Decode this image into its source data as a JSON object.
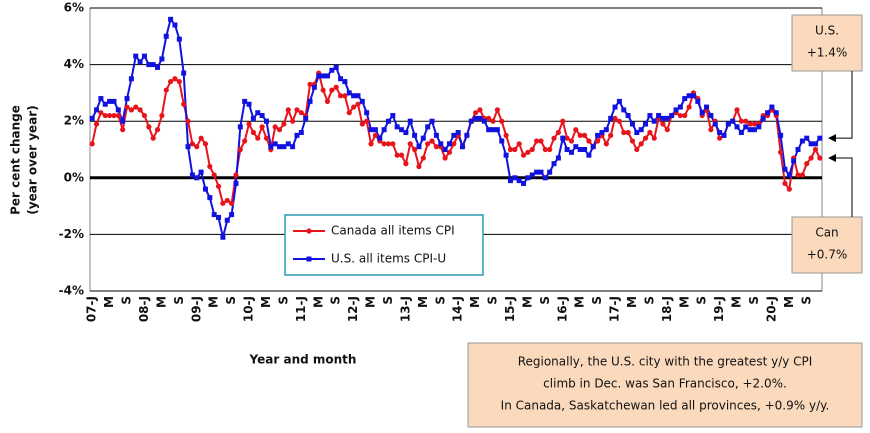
{
  "chart_data": {
    "type": "line",
    "ylabel": [
      "Per cent change",
      "(year over year)"
    ],
    "xlabel": "Year and month",
    "categories": [
      "07-J",
      null,
      null,
      null,
      "M",
      null,
      null,
      null,
      "S",
      null,
      null,
      null,
      "08-J",
      null,
      null,
      null,
      "M",
      null,
      null,
      null,
      "S",
      null,
      null,
      null,
      "09-J",
      null,
      null,
      null,
      "M",
      null,
      null,
      null,
      "S",
      null,
      null,
      null,
      "10-J",
      null,
      null,
      null,
      "M",
      null,
      null,
      null,
      "S",
      null,
      null,
      null,
      "11-J",
      null,
      null,
      null,
      "M",
      null,
      null,
      null,
      "S",
      null,
      null,
      null,
      "12-J",
      null,
      null,
      null,
      "M",
      null,
      null,
      null,
      "S",
      null,
      null,
      null,
      "13-J",
      null,
      null,
      null,
      "M",
      null,
      null,
      null,
      "S",
      null,
      null,
      null,
      "14-J",
      null,
      null,
      null,
      "M",
      null,
      null,
      null,
      "S",
      null,
      null,
      null,
      "15-J",
      null,
      null,
      null,
      "M",
      null,
      null,
      null,
      "S",
      null,
      null,
      null,
      "16-J",
      null,
      null,
      null,
      "M",
      null,
      null,
      null,
      "S",
      null,
      null,
      null,
      "17-J",
      null,
      null,
      null,
      "M",
      null,
      null,
      null,
      "S",
      null,
      null,
      null,
      "18-J",
      null,
      null,
      null,
      "M",
      null,
      null,
      null,
      "S",
      null,
      null,
      null,
      "19-J",
      null,
      null,
      null,
      "M",
      null,
      null,
      null,
      "S",
      null,
      null,
      null,
      "20-J",
      null,
      null,
      null,
      "M",
      null,
      null,
      null,
      "S",
      null,
      null,
      null
    ],
    "series": [
      {
        "name": "Canada all items CPI",
        "color": "#e8141c",
        "marker": "circle",
        "values": [
          1.2,
          1.9,
          2.3,
          2.2,
          2.2,
          2.2,
          2.2,
          1.7,
          2.5,
          2.4,
          2.5,
          2.4,
          2.2,
          1.8,
          1.4,
          1.7,
          2.2,
          3.1,
          3.4,
          3.5,
          3.4,
          2.6,
          2.0,
          1.2,
          1.1,
          1.4,
          1.2,
          0.4,
          0.1,
          -0.3,
          -0.9,
          -0.8,
          -0.9,
          0.1,
          1.0,
          1.3,
          1.9,
          1.6,
          1.4,
          1.8,
          1.4,
          1.0,
          1.8,
          1.7,
          1.9,
          2.4,
          2.0,
          2.4,
          2.3,
          2.2,
          3.3,
          3.3,
          3.7,
          3.1,
          2.7,
          3.1,
          3.2,
          2.9,
          2.9,
          2.3,
          2.5,
          2.6,
          1.9,
          2.0,
          1.2,
          1.5,
          1.3,
          1.2,
          1.2,
          1.2,
          0.8,
          0.8,
          0.5,
          1.2,
          1.0,
          0.4,
          0.7,
          1.2,
          1.3,
          1.1,
          1.1,
          0.7,
          0.9,
          1.2,
          1.5,
          1.1,
          1.5,
          2.0,
          2.3,
          2.4,
          2.1,
          2.1,
          2.0,
          2.4,
          2.0,
          1.5,
          1.0,
          1.0,
          1.2,
          0.8,
          0.9,
          1.0,
          1.3,
          1.3,
          1.0,
          1.0,
          1.4,
          1.6,
          2.0,
          1.4,
          1.3,
          1.7,
          1.5,
          1.5,
          1.3,
          1.1,
          1.3,
          1.5,
          1.2,
          1.5,
          2.1,
          2.0,
          1.6,
          1.6,
          1.3,
          1.0,
          1.2,
          1.4,
          1.6,
          1.4,
          2.1,
          1.9,
          1.7,
          2.2,
          2.3,
          2.2,
          2.2,
          2.5,
          3.0,
          2.8,
          2.2,
          2.4,
          1.7,
          2.0,
          1.4,
          1.5,
          1.9,
          2.0,
          2.4,
          2.0,
          2.0,
          1.9,
          1.9,
          1.9,
          2.2,
          2.2,
          2.4,
          2.2,
          0.9,
          -0.2,
          -0.4,
          0.7,
          0.1,
          0.1,
          0.5,
          0.7,
          1.0,
          0.7
        ]
      },
      {
        "name": "U.S. all items CPI-U",
        "color": "#1212e0",
        "marker": "square",
        "values": [
          2.1,
          2.4,
          2.8,
          2.6,
          2.7,
          2.7,
          2.4,
          2.0,
          2.8,
          3.5,
          4.3,
          4.1,
          4.3,
          4.0,
          4.0,
          3.9,
          4.2,
          5.0,
          5.6,
          5.4,
          4.9,
          3.7,
          1.1,
          0.1,
          0.0,
          0.2,
          -0.4,
          -0.7,
          -1.3,
          -1.4,
          -2.1,
          -1.5,
          -1.3,
          -0.2,
          1.8,
          2.7,
          2.6,
          2.1,
          2.3,
          2.2,
          2.0,
          1.1,
          1.2,
          1.1,
          1.1,
          1.2,
          1.1,
          1.5,
          1.6,
          2.1,
          2.7,
          3.2,
          3.6,
          3.6,
          3.6,
          3.8,
          3.9,
          3.5,
          3.4,
          3.0,
          2.9,
          2.9,
          2.7,
          2.3,
          1.7,
          1.7,
          1.4,
          1.7,
          2.0,
          2.2,
          1.8,
          1.7,
          1.6,
          2.0,
          1.5,
          1.1,
          1.4,
          1.8,
          2.0,
          1.5,
          1.2,
          1.0,
          1.2,
          1.5,
          1.6,
          1.1,
          1.5,
          2.0,
          2.1,
          2.1,
          2.0,
          1.7,
          1.7,
          1.7,
          1.3,
          0.8,
          -0.1,
          0.0,
          -0.1,
          -0.2,
          0.0,
          0.1,
          0.2,
          0.2,
          0.0,
          0.2,
          0.5,
          0.7,
          1.4,
          1.0,
          0.9,
          1.1,
          1.0,
          1.0,
          0.8,
          1.1,
          1.5,
          1.6,
          1.7,
          2.1,
          2.5,
          2.7,
          2.4,
          2.2,
          1.9,
          1.6,
          1.7,
          1.9,
          2.2,
          2.0,
          2.2,
          2.1,
          2.1,
          2.2,
          2.4,
          2.5,
          2.8,
          2.9,
          2.9,
          2.7,
          2.3,
          2.5,
          2.2,
          1.9,
          1.6,
          1.5,
          1.9,
          2.0,
          1.8,
          1.6,
          1.8,
          1.7,
          1.7,
          1.8,
          2.1,
          2.3,
          2.5,
          2.3,
          1.5,
          0.3,
          0.1,
          0.6,
          1.0,
          1.3,
          1.4,
          1.2,
          1.2,
          1.4
        ]
      }
    ],
    "ylim": [
      -4,
      6
    ],
    "yticks": [
      {
        "value": -4,
        "label": "-4%"
      },
      {
        "value": -2,
        "label": "-2%"
      },
      {
        "value": 0,
        "label": "0%"
      },
      {
        "value": 2,
        "label": "2%"
      },
      {
        "value": 4,
        "label": "4%"
      },
      {
        "value": 6,
        "label": "6%"
      }
    ],
    "grid": true,
    "legend": "lower center",
    "callouts": [
      {
        "lines": [
          "U.S.",
          "+1.4%"
        ],
        "series": 1
      },
      {
        "lines": [
          "Can",
          "+0.7%"
        ],
        "series": 0
      }
    ],
    "note": [
      "Regionally, the U.S. city with the greatest y/y CPI",
      "climb in Dec. was San Francisco, +2.0%.",
      "In Canada, Saskatchewan led all provinces, +0.9% y/y."
    ]
  }
}
